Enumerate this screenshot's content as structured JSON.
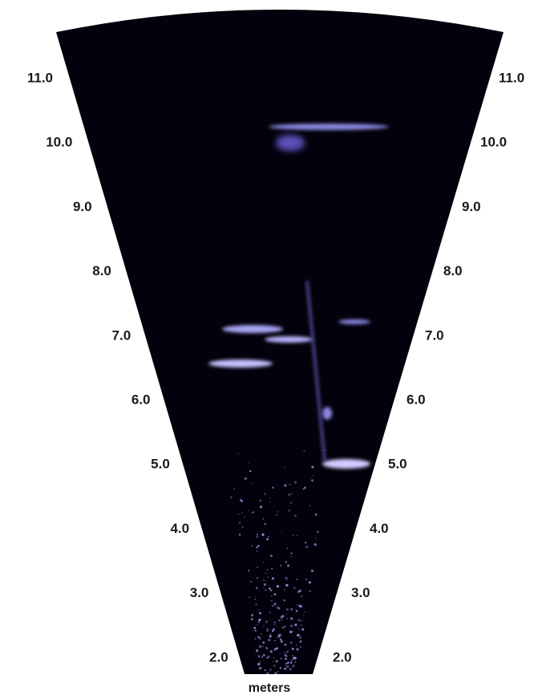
{
  "range_labels": [
    "11.0",
    "10.0",
    "9.0",
    "8.0",
    "7.0",
    "6.0",
    "5.0",
    "4.0",
    "3.0",
    "2.0"
  ],
  "unit_label": "meters"
}
